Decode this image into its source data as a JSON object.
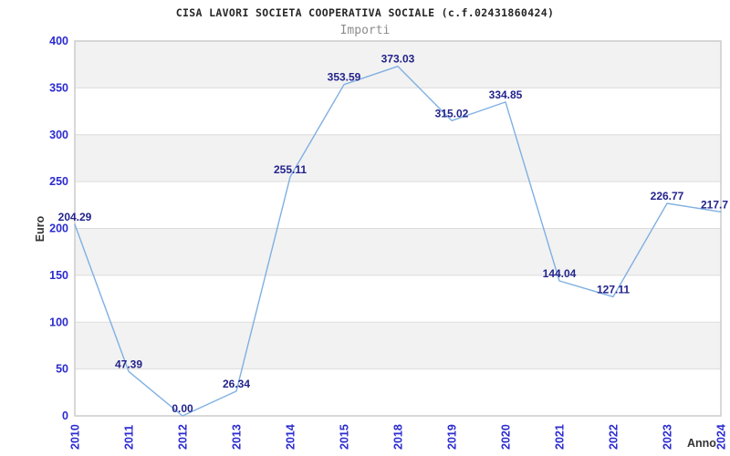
{
  "chart_data": {
    "type": "line",
    "title": "CISA LAVORI SOCIETA COOPERATIVA SOCIALE (c.f.02431860424)",
    "subtitle": "Importi",
    "xlabel": "Anno",
    "ylabel": "Euro",
    "categories": [
      "2010",
      "2011",
      "2012",
      "2013",
      "2014",
      "2015",
      "2018",
      "2019",
      "2020",
      "2021",
      "2022",
      "2023",
      "2024"
    ],
    "values": [
      204.29,
      47.39,
      0.0,
      26.34,
      255.11,
      353.59,
      373.03,
      315.02,
      334.85,
      144.04,
      127.11,
      226.77,
      217.7
    ],
    "point_labels": [
      "204.29",
      "47.39",
      "0.00",
      "26.34",
      "255.11",
      "353.59",
      "373.03",
      "315.02",
      "334.85",
      "144.04",
      "127.11",
      "226.77",
      "217.7"
    ],
    "ylim": [
      0,
      400
    ],
    "yticks": [
      0,
      50,
      100,
      150,
      200,
      250,
      300,
      350,
      400
    ],
    "ytick_step": 50,
    "grid": "alternating-horizontal-bands",
    "legend_position": "none",
    "colors": {
      "line": "#7fb0e2",
      "band": "#f2f2f2",
      "grid_line": "#dcdcdc",
      "plot_border": "#cccccc",
      "tick_label": "#2b2bd0",
      "data_label": "#23238c",
      "title": "#262626",
      "subtitle": "#8c8c8c",
      "axis_label": "#333333",
      "background": "#ffffff"
    }
  }
}
